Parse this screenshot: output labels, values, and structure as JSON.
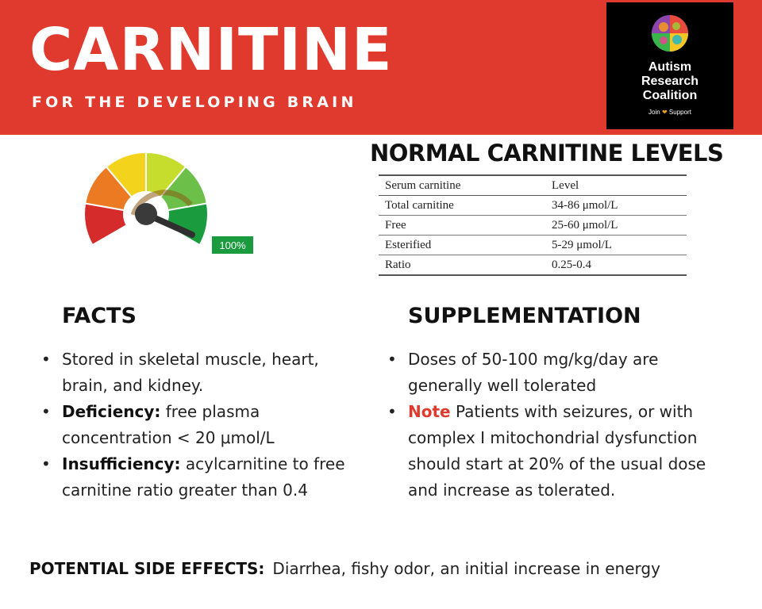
{
  "header": {
    "title": "CARNITINE",
    "subtitle": "FOR THE DEVELOPING BRAIN",
    "logo": {
      "lines": [
        "Autism",
        "Research",
        "Coalition"
      ],
      "tagline_join": "Join",
      "tagline_support": "Support"
    },
    "colors": {
      "banner": "#e03a2f",
      "logo_bg": "#000000"
    }
  },
  "gauge": {
    "label": "100%",
    "level_fraction": 1.0,
    "icon": "gauge-meter-icon",
    "colors": [
      "#d62b2b",
      "#ec7a23",
      "#f3d31c",
      "#c6dd2d",
      "#6cc04a",
      "#1a9c3e"
    ]
  },
  "levels": {
    "title": "NORMAL CARNITINE LEVELS",
    "headers": [
      "Serum carnitine",
      "Level"
    ],
    "rows": [
      [
        "Total carnitine",
        "34-86 μmol/L"
      ],
      [
        "Free",
        "25-60 μmol/L"
      ],
      [
        "Esterified",
        "5-29 μmol/L"
      ],
      [
        "Ratio",
        "0.25-0.4"
      ]
    ]
  },
  "facts": {
    "title": "FACTS",
    "items": [
      {
        "bold": "",
        "text": "Stored in skeletal muscle, heart, brain, and kidney."
      },
      {
        "bold": "Deficiency:",
        "text": " free plasma concentration < 20 μmol/L"
      },
      {
        "bold": "Insufficiency:",
        "text": " acylcarnitine to free carnitine ratio greater than 0.4"
      }
    ]
  },
  "supplementation": {
    "title": "SUPPLEMENTATION",
    "items": [
      {
        "note": "",
        "text": "Doses of 50-100 mg/kg/day are generally well tolerated"
      },
      {
        "note": "Note",
        "text": " Patients with seizures, or with complex I mitochondrial dysfunction should start at 20% of the usual dose and increase as tolerated."
      }
    ]
  },
  "side_effects": {
    "label": "POTENTIAL SIDE EFFECTS:",
    "text": "Diarrhea, fishy odor, an initial increase in energy"
  }
}
